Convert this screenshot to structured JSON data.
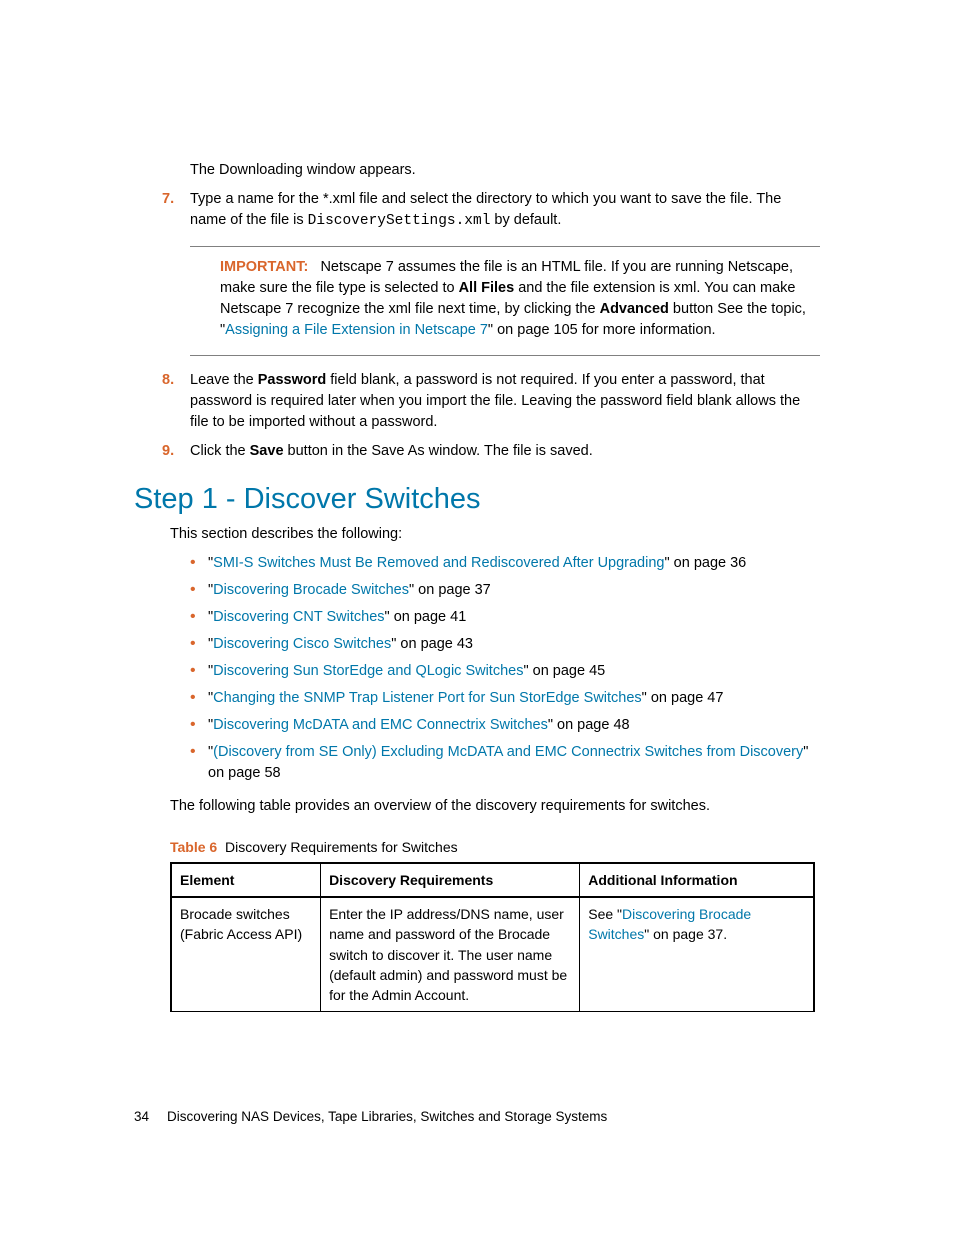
{
  "intro": {
    "line1": "The Downloading window appears."
  },
  "list": {
    "seven": {
      "num": "7.",
      "pre": "Type a name for the *.xml file and select the directory to which you want to save the file. The name of the file is ",
      "code": "DiscoverySettings.xml",
      "post": " by default."
    },
    "eight": {
      "num": "8.",
      "a": "Leave the ",
      "b_bold": "Password",
      "c": " field blank, a password is not required. If you enter a password, that password is required later when you import the file. Leaving the password field blank allows the file to be imported without a password."
    },
    "nine": {
      "num": "9.",
      "a": "Click the ",
      "b_bold": "Save",
      "c": " button in the Save As window. The file is saved."
    }
  },
  "callout": {
    "label": "IMPORTANT:",
    "a": "Netscape 7 assumes the file is an HTML file. If you are running Netscape, make sure the file type is selected to ",
    "b_bold": "All Files",
    "c": " and the file extension is xml. You can make Netscape 7 recognize the xml file next time, by clicking the ",
    "d_bold": "Advanced",
    "e": " button See the topic, \"",
    "link": "Assigning a File Extension in Netscape 7",
    "f": "\" on page 105 for more information."
  },
  "heading": "Step 1 - Discover Switches",
  "intro2": "This section describes the following:",
  "bullets": {
    "b1": {
      "q1": "\"",
      "link": "SMI-S Switches Must Be Removed and Rediscovered After Upgrading",
      "tail": "\" on page 36"
    },
    "b2": {
      "q1": "\"",
      "link": "Discovering Brocade Switches",
      "tail": "\" on page 37"
    },
    "b3": {
      "q1": "\"",
      "link": "Discovering CNT Switches",
      "tail": "\" on page 41"
    },
    "b4": {
      "q1": "\"",
      "link": "Discovering Cisco Switches",
      "tail": "\" on page 43"
    },
    "b5": {
      "q1": "\"",
      "link": "Discovering Sun StorEdge and QLogic Switches",
      "tail": "\" on page 45"
    },
    "b6": {
      "q1": "\"",
      "link": "Changing the SNMP Trap Listener Port for Sun StorEdge Switches",
      "tail": "\" on page 47"
    },
    "b7": {
      "q1": "\"",
      "link": "Discovering McDATA and EMC Connectrix Switches",
      "tail": "\" on page 48"
    },
    "b8": {
      "q1": "\"",
      "link": "(Discovery from SE Only) Excluding McDATA and EMC Connectrix Switches from Discovery",
      "tail": "\" on page 58"
    }
  },
  "pretable": "The following table provides an overview of the discovery requirements for switches.",
  "tablecap": {
    "label": "Table 6",
    "text": "Discovery Requirements for Switches"
  },
  "table": {
    "h1": "Element",
    "h2": "Discovery Requirements",
    "h3": "Additional Information",
    "r1c1": "Brocade switches (Fabric Access API)",
    "r1c2": "Enter the IP address/DNS name, user name and password of the Brocade switch to discover it. The user name (default admin) and password must be for the Admin Account.",
    "r1c3a": "See \"",
    "r1c3link": "Discovering Brocade Switches",
    "r1c3b": "\" on page 37."
  },
  "footer": {
    "page": "34",
    "title": "Discovering NAS Devices, Tape Libraries, Switches and Storage Systems"
  }
}
